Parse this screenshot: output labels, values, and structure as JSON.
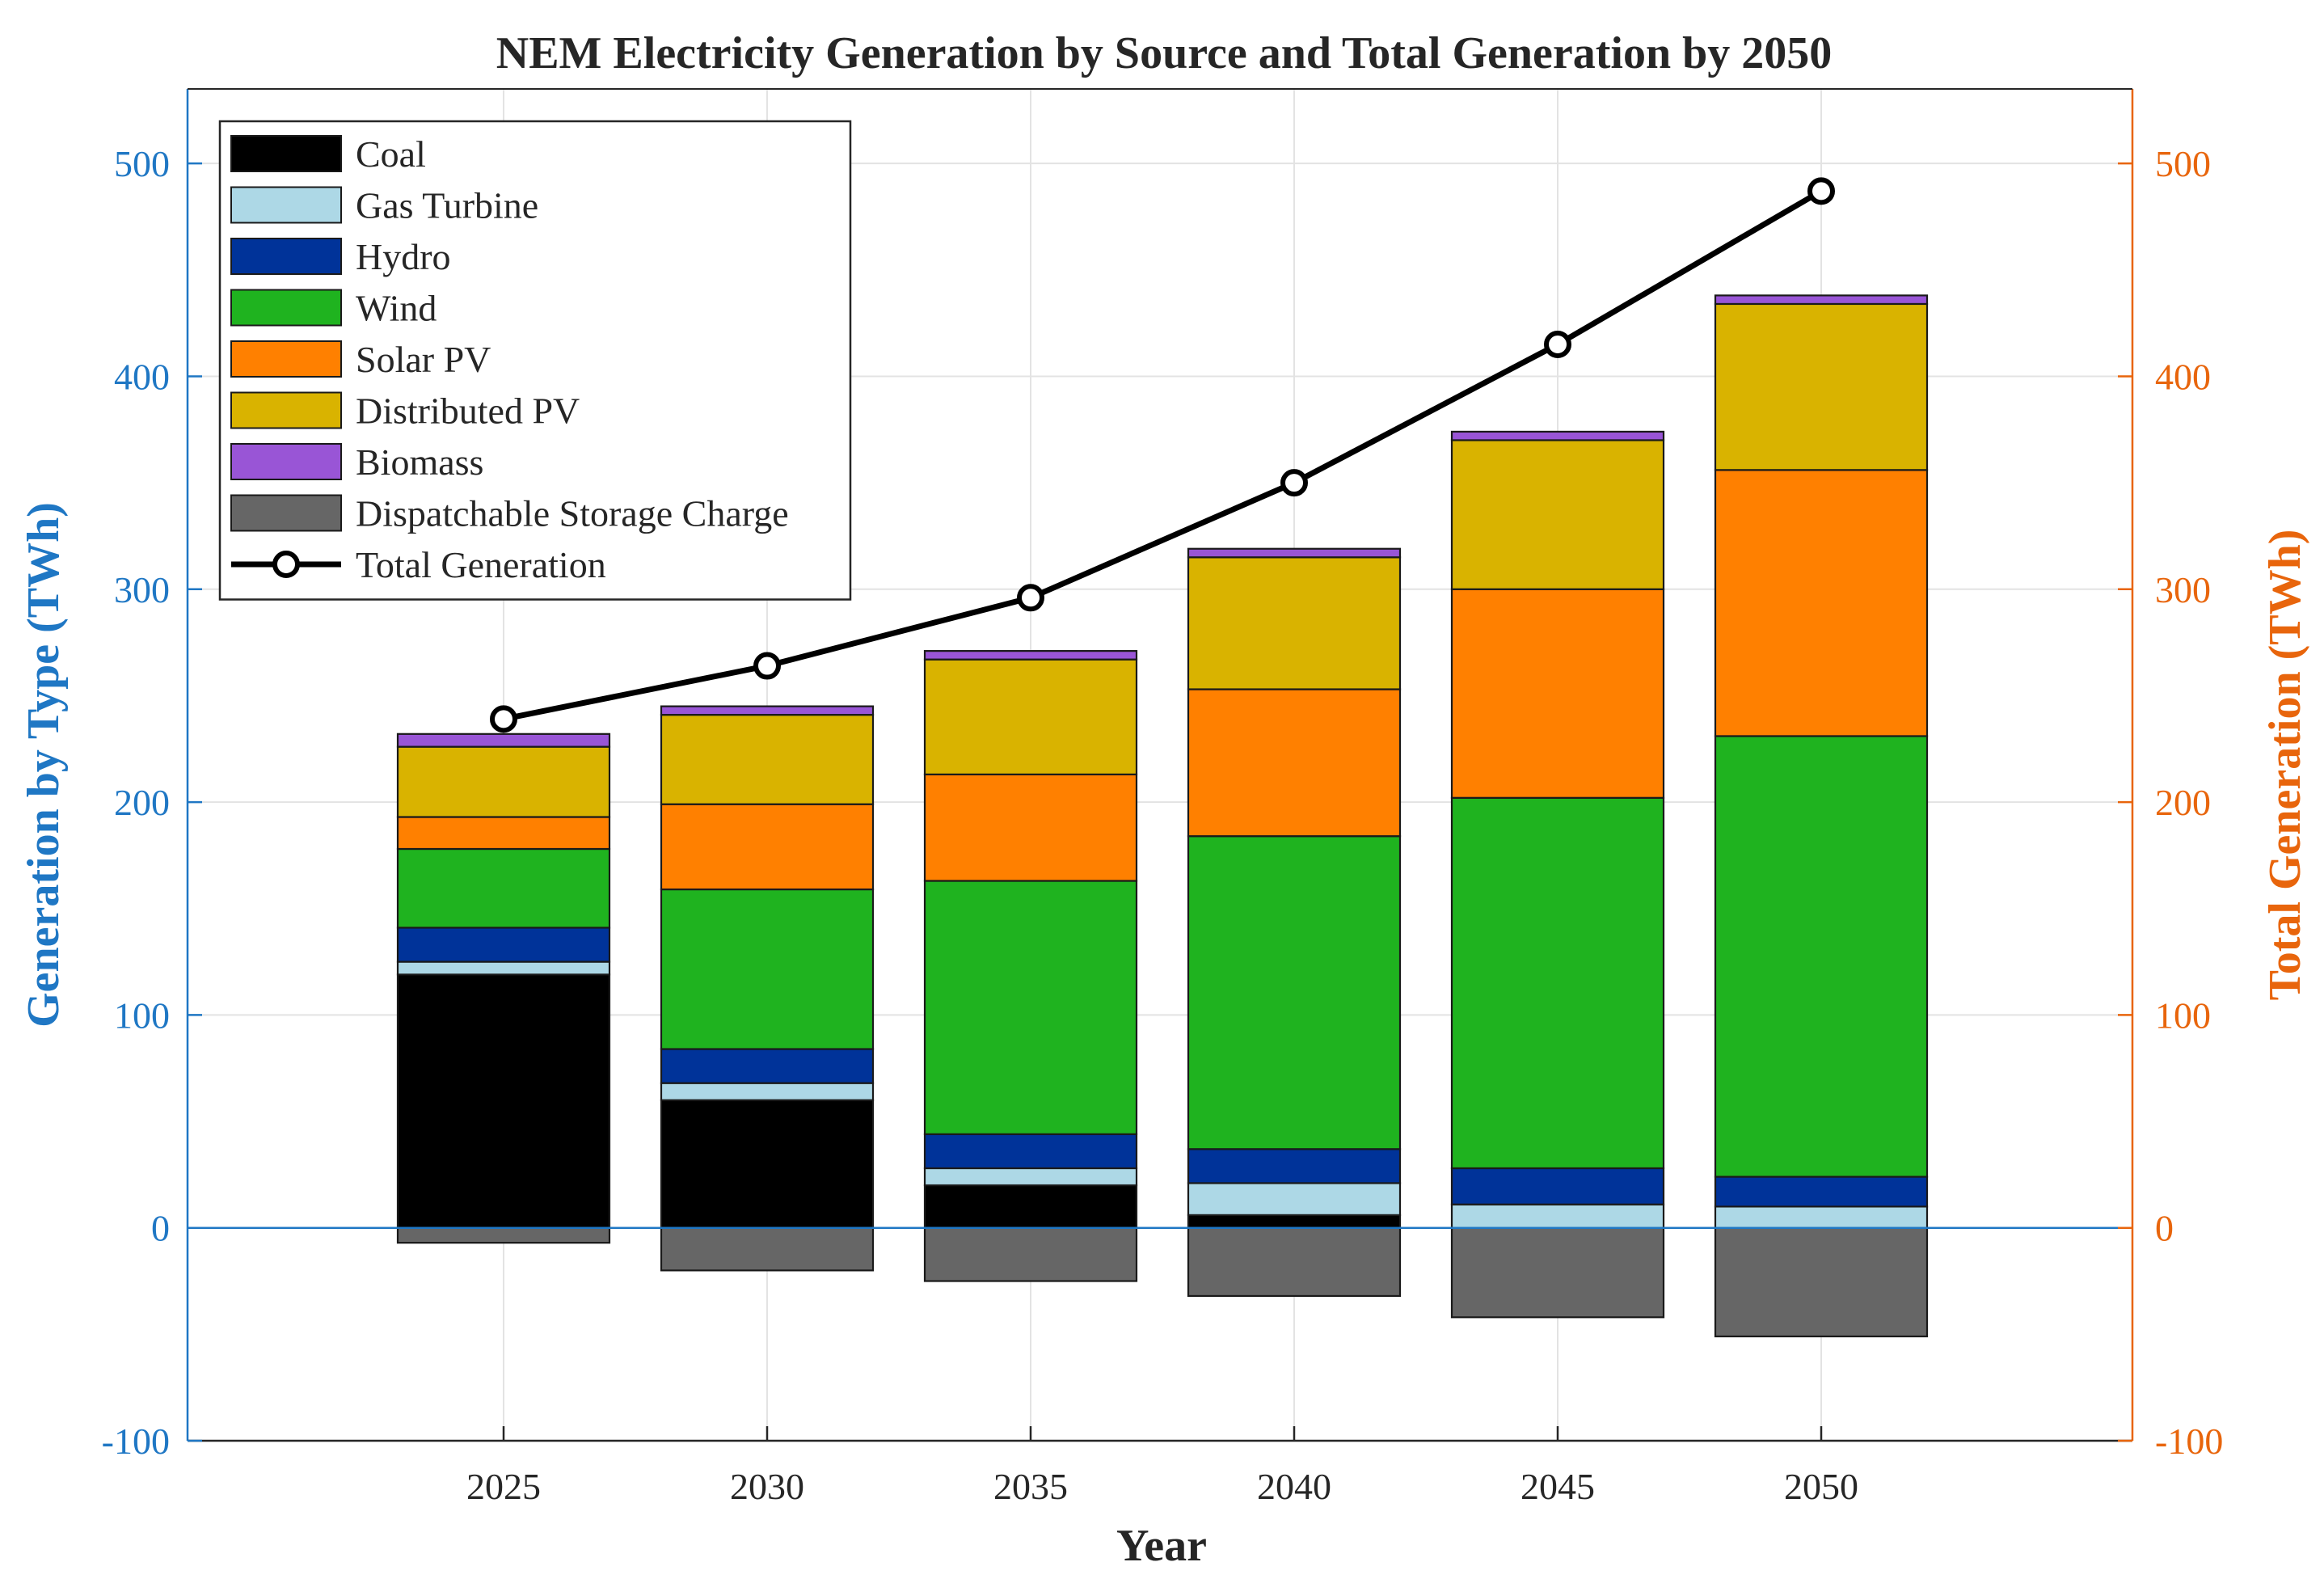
{
  "chart_data": {
    "type": "bar",
    "stacked": true,
    "title": "NEM Electricity Generation by Source and Total Generation by 2050",
    "xlabel": "Year",
    "ylabel": "Generation by Type (TWh)",
    "ylabel_right": "Total Generation (TWh)",
    "categories": [
      "2025",
      "2030",
      "2035",
      "2040",
      "2045",
      "2050"
    ],
    "ylim": [
      -100,
      535
    ],
    "yticks": [
      "-100",
      "0",
      "100",
      "200",
      "300",
      "400",
      "500"
    ],
    "yticks_right": [
      "-100",
      "0",
      "100",
      "200",
      "300",
      "400",
      "500"
    ],
    "grid": true,
    "legend_position": "top-left",
    "series": [
      {
        "name": "Coal",
        "color": "#000000",
        "values": [
          119,
          60,
          20,
          6,
          0,
          0
        ]
      },
      {
        "name": "Gas Turbine",
        "color": "#add8e6",
        "values": [
          6,
          8,
          8,
          15,
          11,
          10
        ]
      },
      {
        "name": "Hydro",
        "color": "#003399",
        "values": [
          16,
          16,
          16,
          16,
          17,
          14
        ]
      },
      {
        "name": "Wind",
        "color": "#1fb31f",
        "values": [
          37,
          75,
          119,
          147,
          174,
          207
        ]
      },
      {
        "name": "Solar PV",
        "color": "#ff8000",
        "values": [
          15,
          40,
          50,
          69,
          98,
          125
        ]
      },
      {
        "name": "Distributed PV",
        "color": "#d9b300",
        "values": [
          33,
          42,
          54,
          62,
          70,
          78
        ]
      },
      {
        "name": "Biomass",
        "color": "#9955d6",
        "values": [
          6,
          4,
          4,
          4,
          4,
          4
        ]
      },
      {
        "name": "Dispatchable Storage Charge",
        "color": "#666666",
        "values": [
          -7,
          -20,
          -25,
          -32,
          -42,
          -51
        ]
      }
    ],
    "line_series": {
      "name": "Total Generation",
      "color": "#000000",
      "axis": "right",
      "values": [
        239,
        264,
        296,
        350,
        415,
        487
      ]
    }
  }
}
